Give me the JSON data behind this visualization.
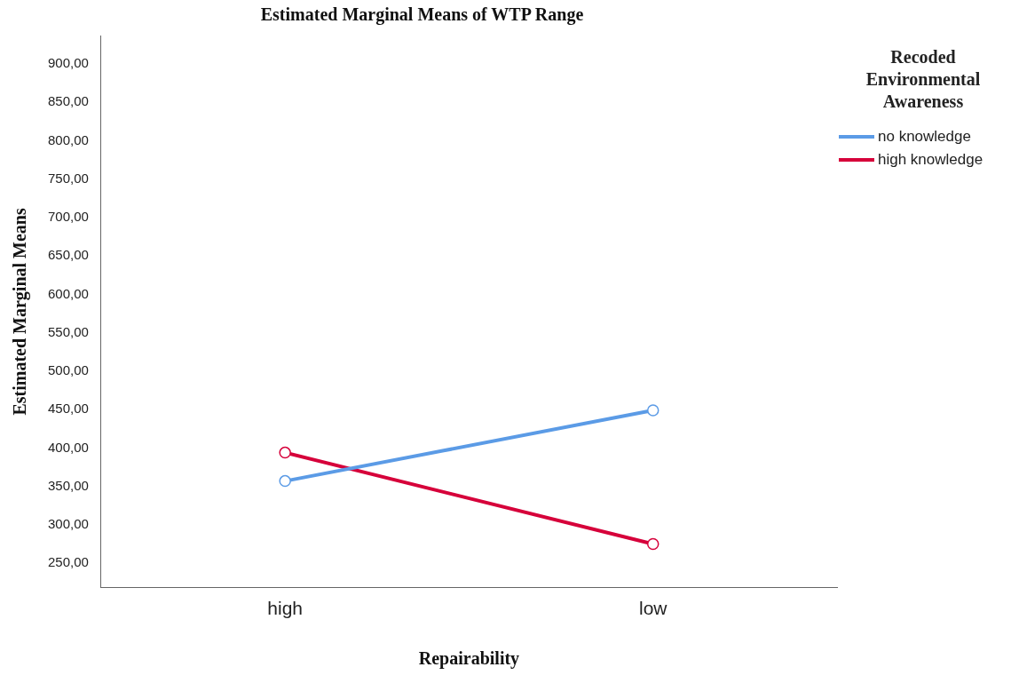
{
  "chart_data": {
    "type": "line",
    "title": "Estimated Marginal Means of WTP Range",
    "xlabel": "Repairability",
    "ylabel": "Estimated Marginal Means",
    "legend_title": "Recoded Environmental Awareness",
    "categories": [
      "high",
      "low"
    ],
    "series": [
      {
        "name": "no knowledge",
        "color": "#5b9be6",
        "values": [
          357,
          449
        ]
      },
      {
        "name": "high knowledge",
        "color": "#d6003a",
        "values": [
          394,
          275
        ]
      }
    ],
    "ylim": [
      218,
      937
    ],
    "yticks": [
      {
        "value": 250,
        "label": "250,00"
      },
      {
        "value": 300,
        "label": "300,00"
      },
      {
        "value": 350,
        "label": "350,00"
      },
      {
        "value": 400,
        "label": "400,00"
      },
      {
        "value": 450,
        "label": "450,00"
      },
      {
        "value": 500,
        "label": "500,00"
      },
      {
        "value": 550,
        "label": "550,00"
      },
      {
        "value": 600,
        "label": "600,00"
      },
      {
        "value": 650,
        "label": "650,00"
      },
      {
        "value": 700,
        "label": "700,00"
      },
      {
        "value": 750,
        "label": "750,00"
      },
      {
        "value": 800,
        "label": "800,00"
      },
      {
        "value": 850,
        "label": "850,00"
      },
      {
        "value": 900,
        "label": "900,00"
      }
    ],
    "grid": false,
    "legend": "top right",
    "marker": "circle",
    "line_style": "solid"
  }
}
